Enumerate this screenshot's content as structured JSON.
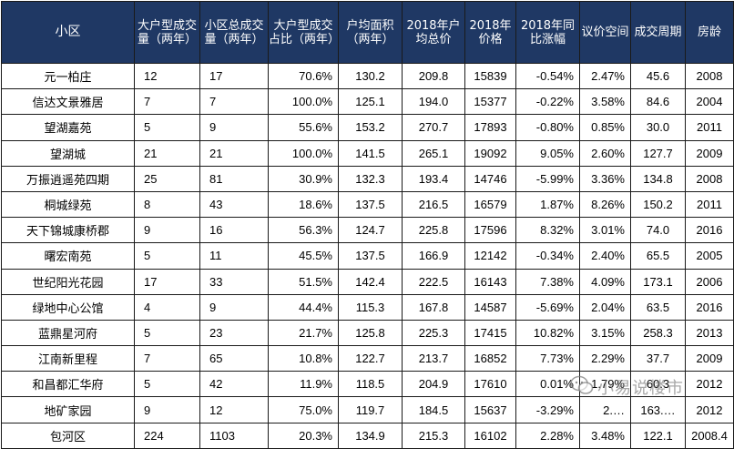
{
  "table": {
    "headers": [
      "小区",
      "大户型成交量（两年）",
      "小区总成交量（两年）",
      "大户型成交占比（两年）",
      "户均面积（两年）",
      "2018年户均总价",
      "2018年价格",
      "2018年同比涨幅",
      "议价空间",
      "成交周期",
      "房龄"
    ],
    "rows": [
      [
        "元一柏庄",
        "12",
        "17",
        "70.6%",
        "130.2",
        "209.8",
        "15839",
        "-0.54%",
        "2.47%",
        "45.6",
        "2008"
      ],
      [
        "信达文景雅居",
        "7",
        "7",
        "100.0%",
        "125.1",
        "194.0",
        "15377",
        "-0.22%",
        "3.58%",
        "84.6",
        "2004"
      ],
      [
        "望湖嘉苑",
        "5",
        "9",
        "55.6%",
        "153.2",
        "270.7",
        "17893",
        "-0.80%",
        "0.85%",
        "30.0",
        "2011"
      ],
      [
        "望湖城",
        "21",
        "21",
        "100.0%",
        "141.5",
        "265.1",
        "19092",
        "9.05%",
        "2.60%",
        "127.7",
        "2009"
      ],
      [
        "万振逍遥苑四期",
        "25",
        "81",
        "30.9%",
        "132.3",
        "193.4",
        "14746",
        "-5.99%",
        "3.36%",
        "134.8",
        "2008"
      ],
      [
        "桐城绿苑",
        "8",
        "43",
        "18.6%",
        "137.5",
        "216.5",
        "16579",
        "1.87%",
        "8.26%",
        "150.2",
        "2011"
      ],
      [
        "天下锦城康桥郡",
        "9",
        "16",
        "56.3%",
        "124.7",
        "225.8",
        "17596",
        "8.32%",
        "3.01%",
        "74.0",
        "2016"
      ],
      [
        "曙宏南苑",
        "5",
        "11",
        "45.5%",
        "137.5",
        "166.9",
        "12142",
        "-0.34%",
        "2.40%",
        "65.5",
        "2005"
      ],
      [
        "世纪阳光花园",
        "17",
        "33",
        "51.5%",
        "142.4",
        "222.5",
        "16143",
        "7.38%",
        "4.09%",
        "173.1",
        "2006"
      ],
      [
        "绿地中心公馆",
        "4",
        "9",
        "44.4%",
        "115.3",
        "167.8",
        "14587",
        "-5.69%",
        "2.04%",
        "63.5",
        "2016"
      ],
      [
        "蓝鼎星河府",
        "5",
        "23",
        "21.7%",
        "125.8",
        "225.3",
        "17415",
        "10.82%",
        "3.15%",
        "258.3",
        "2013"
      ],
      [
        "江南新里程",
        "7",
        "65",
        "10.8%",
        "122.7",
        "213.7",
        "16852",
        "7.73%",
        "2.29%",
        "37.7",
        "2009"
      ],
      [
        "和昌都汇华府",
        "5",
        "42",
        "11.9%",
        "118.5",
        "204.9",
        "17610",
        "0.01%",
        "1.79%",
        "60.3",
        "2012"
      ],
      [
        "地矿家园",
        "9",
        "12",
        "75.0%",
        "119.7",
        "184.5",
        "15637",
        "-3.29%",
        "2.…",
        "163.…",
        "2012"
      ],
      [
        "包河区",
        "224",
        "1103",
        "20.3%",
        "134.9",
        "215.3",
        "16102",
        "2.28%",
        "3.48%",
        "122.1",
        "2008.4"
      ]
    ]
  },
  "watermark": {
    "text": "小易说楼市",
    "icon": "wechat-icon"
  }
}
